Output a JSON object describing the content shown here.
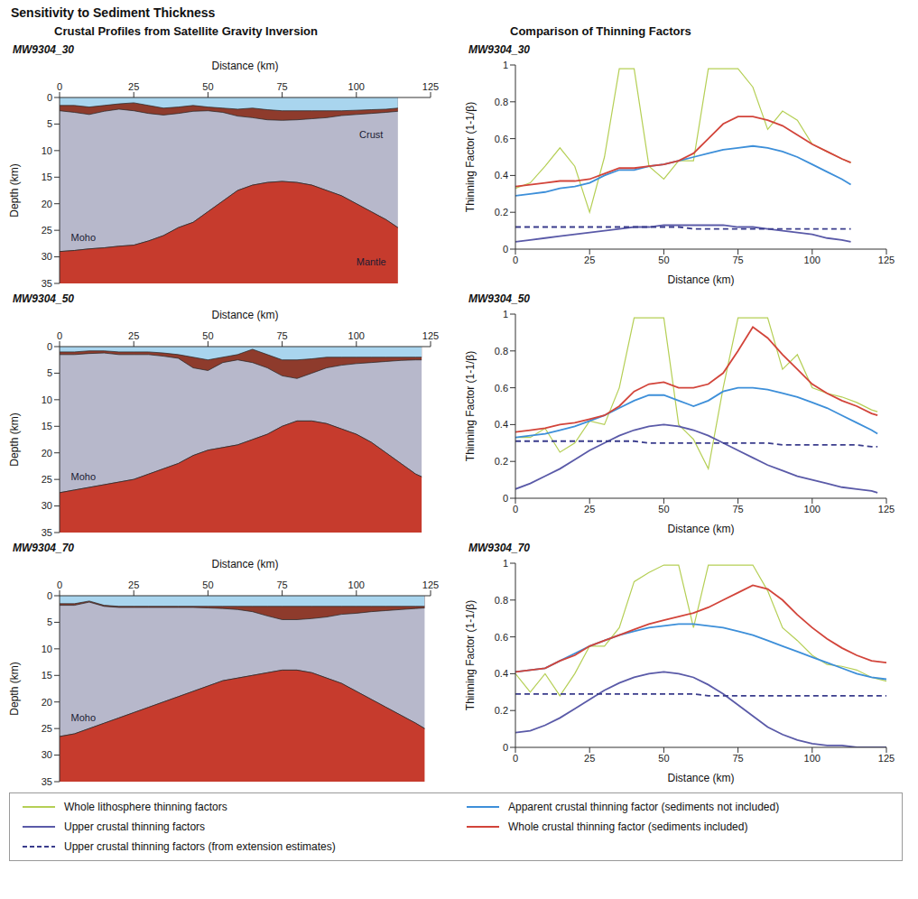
{
  "title": "Sensitivity to Sediment Thickness",
  "columns": [
    "Crustal Profiles from Satellite Gravity Inversion",
    "Comparison of Thinning Factors"
  ],
  "chart_data": [
    {
      "type": "area",
      "title": "MW9304_30",
      "xlabel": "Distance (km)",
      "ylabel": "Depth (km)",
      "xlim": [
        0,
        125
      ],
      "xticks": [
        0,
        25,
        50,
        75,
        100,
        125
      ],
      "ylim": [
        35,
        0
      ],
      "yticks": [
        0,
        5,
        10,
        15,
        20,
        25,
        30,
        35
      ],
      "grid": false,
      "colors": [
        "#a9d5ee",
        "#8e3b2c",
        "#b7b8cb",
        "#c63b2d"
      ],
      "x": [
        0,
        5,
        10,
        15,
        20,
        25,
        30,
        35,
        40,
        45,
        50,
        55,
        60,
        65,
        70,
        75,
        80,
        85,
        90,
        95,
        100,
        105,
        110,
        114
      ],
      "series": [
        {
          "values": [
            1.5,
            1.5,
            1.8,
            1.5,
            1.2,
            1.0,
            1.5,
            2.0,
            1.8,
            1.5,
            1.8,
            2.0,
            2.2,
            2.0,
            2.3,
            2.5,
            2.5,
            2.5,
            2.5,
            2.5,
            2.4,
            2.3,
            2.2,
            2.0
          ]
        },
        {
          "values": [
            2.5,
            2.8,
            3.2,
            2.6,
            2.2,
            2.5,
            3.0,
            3.3,
            3.0,
            2.6,
            2.5,
            2.8,
            3.5,
            3.8,
            4.2,
            4.3,
            4.2,
            4.0,
            3.8,
            3.4,
            3.2,
            3.0,
            2.8,
            2.6
          ]
        },
        {
          "values": [
            29,
            28.8,
            28.5,
            28.3,
            28,
            27.8,
            27,
            26,
            24.5,
            23.5,
            21.5,
            19.5,
            17.5,
            16.5,
            16,
            15.8,
            16,
            16.5,
            17.5,
            18.5,
            20,
            21.5,
            23,
            24.5
          ]
        }
      ],
      "annotations": [
        {
          "text": "Crust",
          "x": 105,
          "y": 7
        },
        {
          "text": "Mantle",
          "x": 105,
          "y": 31
        },
        {
          "text": "Moho",
          "x": 8,
          "y": 26.3
        }
      ]
    },
    {
      "type": "line",
      "title": "MW9304_30",
      "xlabel": "Distance (km)",
      "ylabel": "Thinning Factor (1-1/β)",
      "xlim": [
        0,
        125
      ],
      "xticks": [
        0,
        25,
        50,
        75,
        100,
        125
      ],
      "ylim": [
        0,
        1
      ],
      "yticks": [
        0,
        0.2,
        0.4,
        0.6,
        0.8,
        1
      ],
      "grid": false,
      "legend": "bottom",
      "x": [
        0,
        5,
        10,
        15,
        20,
        25,
        30,
        35,
        40,
        45,
        50,
        55,
        60,
        65,
        70,
        75,
        80,
        85,
        90,
        95,
        100,
        105,
        110,
        113
      ],
      "series": [
        {
          "name": "Whole lithosphere thinning factors",
          "color": "#b5cf55",
          "values": [
            0.33,
            0.36,
            0.45,
            0.55,
            0.45,
            0.2,
            0.5,
            0.98,
            0.98,
            0.45,
            0.38,
            0.48,
            0.48,
            0.98,
            0.98,
            0.98,
            0.88,
            0.65,
            0.75,
            0.7,
            0.57,
            0.53,
            0.49,
            0.47
          ]
        },
        {
          "name": "Apparent crustal thinning factor (sediments not included)",
          "color": "#3d8fd9",
          "values": [
            0.29,
            0.3,
            0.31,
            0.33,
            0.34,
            0.36,
            0.4,
            0.43,
            0.43,
            0.45,
            0.46,
            0.48,
            0.5,
            0.52,
            0.54,
            0.55,
            0.56,
            0.55,
            0.53,
            0.5,
            0.46,
            0.42,
            0.38,
            0.35
          ]
        },
        {
          "name": "Upper crustal thinning factors",
          "color": "#5a5aa8",
          "values": [
            0.04,
            0.05,
            0.06,
            0.07,
            0.08,
            0.09,
            0.1,
            0.11,
            0.12,
            0.12,
            0.13,
            0.13,
            0.13,
            0.13,
            0.13,
            0.12,
            0.12,
            0.11,
            0.1,
            0.09,
            0.08,
            0.06,
            0.05,
            0.04
          ]
        },
        {
          "name": "Whole crustal thinning factor (sediments included)",
          "color": "#d2443a",
          "values": [
            0.34,
            0.35,
            0.36,
            0.37,
            0.37,
            0.38,
            0.41,
            0.44,
            0.44,
            0.45,
            0.46,
            0.48,
            0.52,
            0.6,
            0.68,
            0.72,
            0.72,
            0.7,
            0.67,
            0.62,
            0.57,
            0.53,
            0.49,
            0.47
          ]
        },
        {
          "name": "Upper crustal thinning factors (from extension estimates)",
          "color": "#3a3c8c",
          "line_style": "dashed",
          "values": [
            0.12,
            0.12,
            0.12,
            0.12,
            0.12,
            0.12,
            0.12,
            0.12,
            0.12,
            0.12,
            0.12,
            0.12,
            0.11,
            0.11,
            0.11,
            0.11,
            0.11,
            0.11,
            0.11,
            0.11,
            0.11,
            0.11,
            0.11,
            0.11
          ]
        }
      ]
    },
    {
      "type": "area",
      "title": "MW9304_50",
      "xlabel": "Distance (km)",
      "ylabel": "Depth (km)",
      "xlim": [
        0,
        125
      ],
      "xticks": [
        0,
        25,
        50,
        75,
        100,
        125
      ],
      "ylim": [
        35,
        0
      ],
      "yticks": [
        0,
        5,
        10,
        15,
        20,
        25,
        30,
        35
      ],
      "grid": false,
      "colors": [
        "#a9d5ee",
        "#8e3b2c",
        "#b7b8cb",
        "#c63b2d"
      ],
      "x": [
        0,
        5,
        10,
        15,
        20,
        25,
        30,
        35,
        40,
        45,
        50,
        55,
        60,
        65,
        70,
        75,
        80,
        85,
        90,
        95,
        100,
        105,
        110,
        115,
        120,
        122
      ],
      "series": [
        {
          "values": [
            1,
            1,
            0.8,
            0.8,
            1,
            1,
            1,
            1.2,
            1.5,
            2,
            2.5,
            2,
            1.5,
            0.5,
            1.5,
            2.5,
            2.5,
            2.3,
            2,
            2,
            2,
            2,
            2,
            2,
            2,
            2
          ]
        },
        {
          "values": [
            1.5,
            1.5,
            1.3,
            1.2,
            1.5,
            1.5,
            1.5,
            1.8,
            2.2,
            4,
            4.5,
            3,
            2.5,
            3,
            4,
            5.5,
            6,
            5,
            4,
            3.5,
            3.2,
            3,
            2.8,
            2.6,
            2.5,
            2.5
          ]
        },
        {
          "values": [
            27.5,
            27,
            26.5,
            26,
            25.5,
            25,
            24,
            23,
            22,
            20.5,
            19.5,
            19,
            18.5,
            17.5,
            16.5,
            15,
            14,
            14,
            14.5,
            15.5,
            16.5,
            18,
            20,
            22,
            24,
            24.5
          ]
        }
      ],
      "annotations": [
        {
          "text": "Moho",
          "x": 8,
          "y": 24.5
        }
      ]
    },
    {
      "type": "line",
      "title": "MW9304_50",
      "xlabel": "Distance (km)",
      "ylabel": "Thinning Factor (1-1/β)",
      "xlim": [
        0,
        125
      ],
      "xticks": [
        0,
        25,
        50,
        75,
        100,
        125
      ],
      "ylim": [
        0,
        1
      ],
      "yticks": [
        0,
        0.2,
        0.4,
        0.6,
        0.8,
        1
      ],
      "grid": false,
      "legend": "bottom",
      "x": [
        0,
        5,
        10,
        15,
        20,
        25,
        30,
        35,
        40,
        45,
        50,
        55,
        60,
        65,
        70,
        75,
        80,
        85,
        90,
        95,
        100,
        105,
        110,
        115,
        120,
        122
      ],
      "series": [
        {
          "name": "Whole lithosphere thinning factors",
          "color": "#b5cf55",
          "values": [
            0.33,
            0.33,
            0.38,
            0.25,
            0.3,
            0.42,
            0.4,
            0.6,
            0.98,
            0.98,
            0.98,
            0.4,
            0.32,
            0.16,
            0.6,
            0.98,
            0.98,
            0.98,
            0.7,
            0.78,
            0.6,
            0.57,
            0.55,
            0.52,
            0.48,
            0.47
          ]
        },
        {
          "name": "Apparent crustal thinning factor (sediments not included)",
          "color": "#3d8fd9",
          "values": [
            0.33,
            0.34,
            0.35,
            0.37,
            0.39,
            0.42,
            0.45,
            0.49,
            0.53,
            0.56,
            0.56,
            0.53,
            0.5,
            0.53,
            0.58,
            0.6,
            0.6,
            0.59,
            0.57,
            0.55,
            0.52,
            0.49,
            0.45,
            0.41,
            0.37,
            0.35
          ]
        },
        {
          "name": "Upper crustal thinning factors",
          "color": "#5a5aa8",
          "values": [
            0.05,
            0.08,
            0.12,
            0.16,
            0.21,
            0.26,
            0.3,
            0.34,
            0.37,
            0.39,
            0.4,
            0.39,
            0.37,
            0.34,
            0.3,
            0.26,
            0.22,
            0.18,
            0.15,
            0.12,
            0.1,
            0.08,
            0.06,
            0.05,
            0.04,
            0.03
          ]
        },
        {
          "name": "Whole crustal thinning factor (sediments included)",
          "color": "#d2443a",
          "values": [
            0.36,
            0.37,
            0.38,
            0.4,
            0.41,
            0.43,
            0.45,
            0.5,
            0.58,
            0.62,
            0.63,
            0.6,
            0.6,
            0.62,
            0.68,
            0.8,
            0.93,
            0.87,
            0.78,
            0.7,
            0.62,
            0.57,
            0.53,
            0.5,
            0.46,
            0.45
          ]
        },
        {
          "name": "Upper crustal thinning factors (from extension estimates)",
          "color": "#3a3c8c",
          "line_style": "dashed",
          "values": [
            0.31,
            0.31,
            0.31,
            0.31,
            0.31,
            0.31,
            0.31,
            0.31,
            0.31,
            0.3,
            0.3,
            0.3,
            0.3,
            0.3,
            0.3,
            0.3,
            0.3,
            0.3,
            0.29,
            0.29,
            0.29,
            0.29,
            0.29,
            0.29,
            0.28,
            0.28
          ]
        }
      ]
    },
    {
      "type": "area",
      "title": "MW9304_70",
      "xlabel": "Distance (km)",
      "ylabel": "Depth (km)",
      "xlim": [
        0,
        125
      ],
      "xticks": [
        0,
        25,
        50,
        75,
        100,
        125
      ],
      "ylim": [
        35,
        0
      ],
      "yticks": [
        0,
        5,
        10,
        15,
        20,
        25,
        30,
        35
      ],
      "grid": false,
      "colors": [
        "#a9d5ee",
        "#8e3b2c",
        "#b7b8cb",
        "#c63b2d"
      ],
      "x": [
        0,
        5,
        10,
        15,
        20,
        25,
        30,
        35,
        40,
        45,
        50,
        55,
        60,
        65,
        70,
        75,
        80,
        85,
        90,
        95,
        100,
        105,
        110,
        115,
        120,
        123
      ],
      "series": [
        {
          "values": [
            1.5,
            1.5,
            1,
            1.8,
            2,
            2,
            2,
            2,
            2,
            2,
            2,
            2,
            2,
            2,
            2,
            2,
            2,
            2,
            2,
            2,
            2,
            2,
            2,
            2,
            2,
            2
          ]
        },
        {
          "values": [
            1.8,
            1.8,
            1.2,
            2,
            2.2,
            2.2,
            2.2,
            2.2,
            2.2,
            2.2,
            2.3,
            2.4,
            2.6,
            3.0,
            3.8,
            4.5,
            4.5,
            4.3,
            4,
            3.5,
            3.3,
            3,
            2.8,
            2.6,
            2.4,
            2.3
          ]
        },
        {
          "values": [
            26.5,
            26,
            25,
            24,
            23,
            22,
            21,
            20,
            19,
            18,
            17,
            16,
            15.5,
            15,
            14.5,
            14,
            14,
            14.5,
            15.5,
            16.5,
            18,
            19.5,
            21,
            22.5,
            24,
            25
          ]
        }
      ],
      "annotations": [
        {
          "text": "Moho",
          "x": 8,
          "y": 23
        }
      ]
    },
    {
      "type": "line",
      "title": "MW9304_70",
      "xlabel": "Distance (km)",
      "ylabel": "Thinning Factor (1-1/β)",
      "xlim": [
        0,
        125
      ],
      "xticks": [
        0,
        25,
        50,
        75,
        100,
        125
      ],
      "ylim": [
        0,
        1
      ],
      "yticks": [
        0,
        0.2,
        0.4,
        0.6,
        0.8,
        1
      ],
      "grid": false,
      "legend": "bottom",
      "x": [
        0,
        5,
        10,
        15,
        20,
        25,
        30,
        35,
        40,
        45,
        50,
        55,
        60,
        65,
        70,
        75,
        80,
        85,
        90,
        95,
        100,
        105,
        110,
        115,
        120,
        125
      ],
      "series": [
        {
          "name": "Whole lithosphere thinning factors",
          "color": "#b5cf55",
          "values": [
            0.4,
            0.3,
            0.4,
            0.28,
            0.4,
            0.55,
            0.55,
            0.65,
            0.9,
            0.95,
            0.99,
            0.99,
            0.65,
            0.99,
            0.99,
            0.99,
            0.99,
            0.85,
            0.65,
            0.58,
            0.5,
            0.45,
            0.44,
            0.42,
            0.38,
            0.36
          ]
        },
        {
          "name": "Apparent crustal thinning factor (sediments not included)",
          "color": "#3d8fd9",
          "values": [
            0.41,
            0.42,
            0.43,
            0.47,
            0.51,
            0.55,
            0.58,
            0.61,
            0.63,
            0.65,
            0.66,
            0.67,
            0.67,
            0.66,
            0.65,
            0.63,
            0.61,
            0.58,
            0.55,
            0.52,
            0.49,
            0.46,
            0.43,
            0.4,
            0.38,
            0.37
          ]
        },
        {
          "name": "Upper crustal thinning factors",
          "color": "#5a5aa8",
          "values": [
            0.08,
            0.09,
            0.12,
            0.16,
            0.21,
            0.26,
            0.31,
            0.35,
            0.38,
            0.4,
            0.41,
            0.4,
            0.38,
            0.34,
            0.29,
            0.23,
            0.17,
            0.11,
            0.07,
            0.04,
            0.02,
            0.01,
            0.01,
            0,
            0,
            0
          ]
        },
        {
          "name": "Whole crustal thinning factor (sediments included)",
          "color": "#d2443a",
          "values": [
            0.41,
            0.42,
            0.43,
            0.47,
            0.5,
            0.55,
            0.58,
            0.61,
            0.64,
            0.67,
            0.69,
            0.71,
            0.73,
            0.76,
            0.8,
            0.84,
            0.88,
            0.86,
            0.8,
            0.72,
            0.65,
            0.59,
            0.54,
            0.5,
            0.47,
            0.46
          ]
        },
        {
          "name": "Upper crustal thinning factors (from extension estimates)",
          "color": "#3a3c8c",
          "line_style": "dashed",
          "values": [
            0.29,
            0.29,
            0.29,
            0.29,
            0.29,
            0.29,
            0.29,
            0.29,
            0.29,
            0.29,
            0.29,
            0.29,
            0.29,
            0.28,
            0.28,
            0.28,
            0.28,
            0.28,
            0.28,
            0.28,
            0.28,
            0.28,
            0.28,
            0.28,
            0.28,
            0.28
          ]
        }
      ]
    }
  ]
}
